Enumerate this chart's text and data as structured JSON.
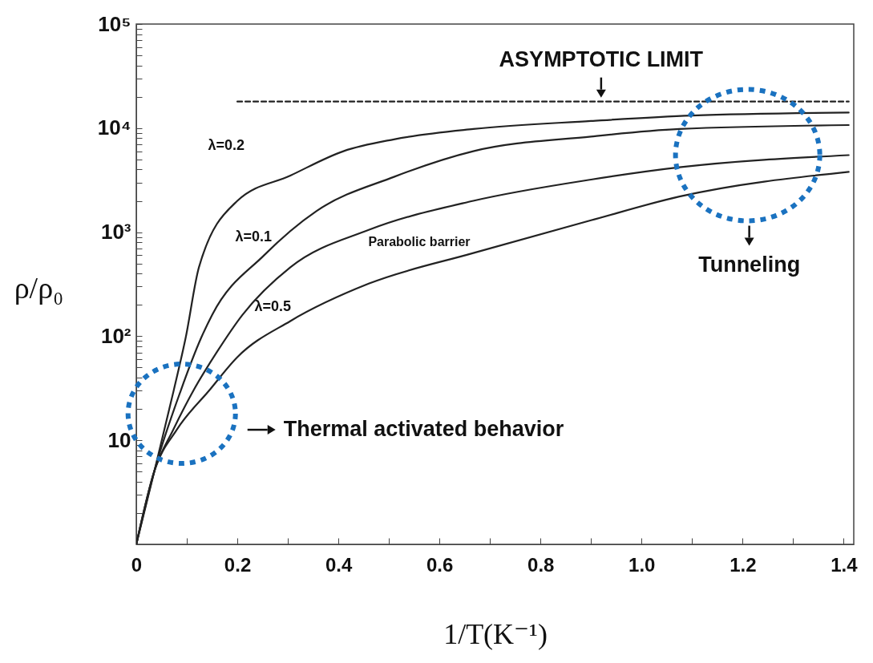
{
  "chart_data": {
    "type": "line",
    "xlabel": "1/T(K⁻¹)",
    "ylabel": "ρ/ρ₀",
    "log": true,
    "grid": false,
    "marker": "none",
    "xlim": [
      0,
      1.42
    ],
    "ylim": [
      1,
      100000
    ],
    "xticks": [
      0,
      {
        "value": 0.1,
        "label": null
      },
      0.2,
      {
        "value": 0.3,
        "label": null
      },
      0.4,
      {
        "value": 0.5,
        "label": null
      },
      0.6,
      {
        "value": 0.7,
        "label": null
      },
      0.8,
      {
        "value": 0.9,
        "label": null
      },
      {
        "value": 1,
        "label": "1.0"
      },
      {
        "value": 1.1,
        "label": null
      },
      1.2,
      {
        "value": 1.3,
        "label": null
      },
      1.4
    ],
    "yticks": [
      {
        "value": 2,
        "label": null
      },
      {
        "value": 3,
        "label": null
      },
      {
        "value": 4,
        "label": null
      },
      {
        "value": 5,
        "label": null
      },
      {
        "value": 6,
        "label": null
      },
      {
        "value": 7,
        "label": null
      },
      {
        "value": 8,
        "label": null
      },
      {
        "value": 9,
        "label": null
      },
      10,
      {
        "value": 20,
        "label": null
      },
      {
        "value": 30,
        "label": null
      },
      {
        "value": 40,
        "label": null
      },
      {
        "value": 50,
        "label": null
      },
      {
        "value": 60,
        "label": null
      },
      {
        "value": 70,
        "label": null
      },
      {
        "value": 80,
        "label": null
      },
      {
        "value": 90,
        "label": null
      },
      {
        "value": 100,
        "label": "10²"
      },
      {
        "value": 200,
        "label": null
      },
      {
        "value": 300,
        "label": null
      },
      {
        "value": 400,
        "label": null
      },
      {
        "value": 500,
        "label": null
      },
      {
        "value": 600,
        "label": null
      },
      {
        "value": 700,
        "label": null
      },
      {
        "value": 800,
        "label": null
      },
      {
        "value": 900,
        "label": null
      },
      {
        "value": 1000,
        "label": "10³"
      },
      {
        "value": 2000,
        "label": null
      },
      {
        "value": 3000,
        "label": null
      },
      {
        "value": 4000,
        "label": null
      },
      {
        "value": 5000,
        "label": null
      },
      {
        "value": 6000,
        "label": null
      },
      {
        "value": 7000,
        "label": null
      },
      {
        "value": 8000,
        "label": null
      },
      {
        "value": 9000,
        "label": null
      },
      {
        "value": 10000,
        "label": "10⁴"
      },
      {
        "value": 20000,
        "label": null
      },
      {
        "value": 30000,
        "label": null
      },
      {
        "value": 40000,
        "label": null
      },
      {
        "value": 50000,
        "label": null
      },
      {
        "value": 60000,
        "label": null
      },
      {
        "value": 70000,
        "label": null
      },
      {
        "value": 80000,
        "label": null
      },
      {
        "value": 90000,
        "label": null
      },
      {
        "value": 100000,
        "label": "10⁵"
      }
    ],
    "series": [
      {
        "name": "λ=0.2",
        "color": "#222222",
        "x": [
          0,
          0.036,
          0.074,
          0.098,
          0.124,
          0.2,
          0.305,
          0.41,
          0.51,
          0.667,
          0.9,
          1.1,
          1.41
        ],
        "values": [
          1,
          5.1,
          30,
          98,
          460,
          2000,
          3500,
          6000,
          7800,
          9800,
          11700,
          13200,
          14100
        ]
      },
      {
        "name": "λ=0.1",
        "color": "#222222",
        "x": [
          0,
          0.036,
          0.088,
          0.129,
          0.15,
          0.253,
          0.357,
          0.51,
          0.667,
          0.9,
          1.075,
          1.41
        ],
        "values": [
          1,
          5.1,
          30,
          98,
          160,
          600,
          1600,
          3400,
          6000,
          8300,
          9800,
          10700
        ]
      },
      {
        "name": "Parabolic barrier",
        "color": "#222222",
        "x": [
          0,
          0.036,
          0.073,
          0.113,
          0.16,
          0.21,
          0.305,
          0.46,
          0.667,
          0.9,
          1.075,
          1.41
        ],
        "values": [
          1,
          5.1,
          12.6,
          30,
          71,
          160,
          460,
          1050,
          2000,
          3200,
          4200,
          5500
        ]
      },
      {
        "name": "λ=0.5",
        "color": "#222222",
        "x": [
          0,
          0.036,
          0.08,
          0.144,
          0.2,
          0.305,
          0.46,
          0.667,
          0.9,
          1.075,
          1.41
        ],
        "values": [
          1,
          5.1,
          12.6,
          30,
          63,
          140,
          320,
          630,
          1300,
          2200,
          3800
        ]
      },
      {
        "type": "line",
        "line_style": "dashed",
        "color": "#222222",
        "x": [
          0.2,
          1.41
        ],
        "values": [
          18000,
          18000
        ]
      }
    ],
    "annotations": [
      {
        "text": "ASYMPTOTIC LIMIT",
        "x": 0.92,
        "y": 18000
      },
      "Thermal activated behavior",
      "Tunneling"
    ]
  }
}
